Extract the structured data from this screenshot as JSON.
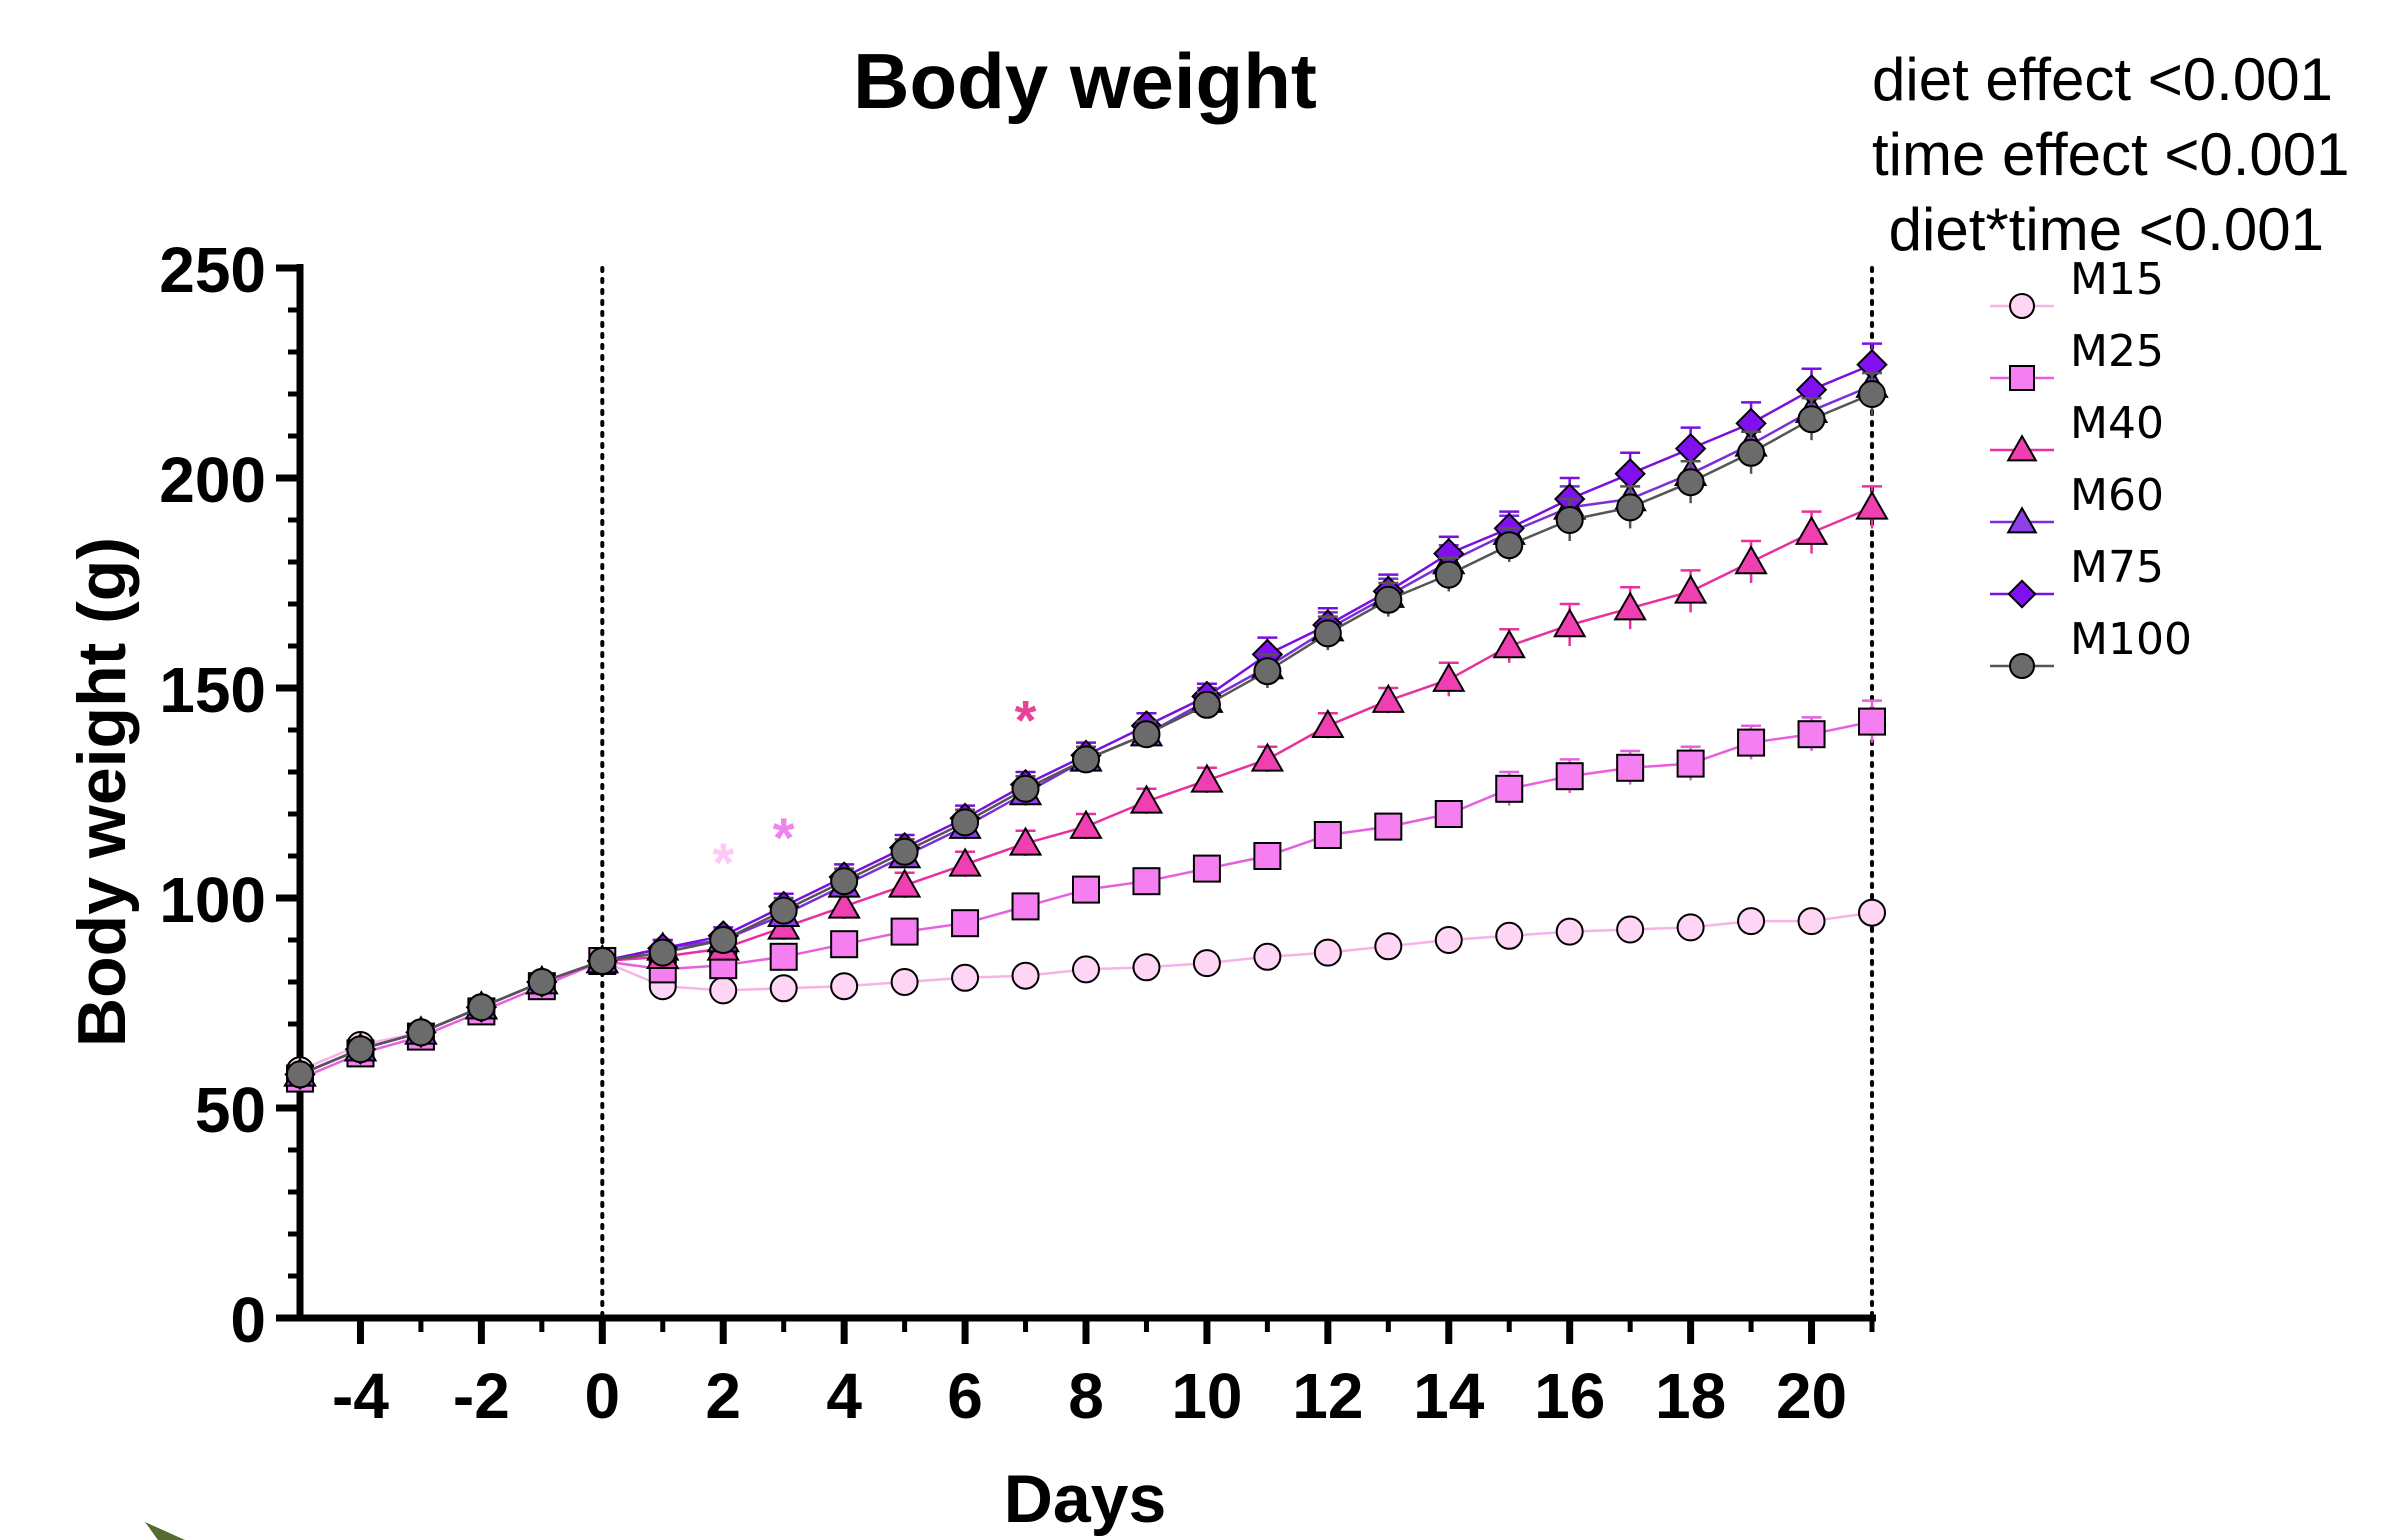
{
  "chart_data": {
    "type": "line",
    "title": "Body weight",
    "xlabel": "Days",
    "ylabel": "Body weight (g)",
    "xlim": [
      -5,
      21
    ],
    "ylim": [
      0,
      250
    ],
    "x_ticks": [
      -4,
      -2,
      0,
      2,
      4,
      6,
      8,
      10,
      12,
      14,
      16,
      18,
      20
    ],
    "y_ticks": [
      0,
      50,
      100,
      150,
      200,
      250
    ],
    "reference_lines_x": [
      0,
      21
    ],
    "grid": false,
    "legend_position": "top-right",
    "annotations": [
      {
        "text": "diet effect <0.001"
      },
      {
        "text": "time effect <0.001"
      },
      {
        "text": " diet*time <0.001"
      }
    ],
    "significance_marks": [
      {
        "text": "*",
        "x": 2,
        "y": 109,
        "color": "#ffc8f4"
      },
      {
        "text": "*",
        "x": 3,
        "y": 115,
        "color": "#ee82ee"
      },
      {
        "text": "*",
        "x": 7,
        "y": 143,
        "color": "#e8439a"
      }
    ],
    "x": [
      -5,
      -4,
      -3,
      -2,
      -1,
      0,
      1,
      2,
      3,
      4,
      5,
      6,
      7,
      8,
      9,
      10,
      11,
      12,
      13,
      14,
      15,
      16,
      17,
      18,
      19,
      20,
      21
    ],
    "series": [
      {
        "name": "M15",
        "marker": "circle",
        "color": "#ffd5f5",
        "line_color": "#f7b3e8",
        "values": [
          59,
          65,
          68,
          74,
          80,
          85,
          79,
          78,
          78.5,
          79,
          80,
          81,
          81.5,
          83,
          83.5,
          84.5,
          86,
          87,
          88.5,
          90,
          91,
          92,
          92.5,
          93,
          94.5,
          94.5,
          96.5
        ],
        "errors": [
          2,
          2,
          2,
          2,
          2,
          2,
          2,
          2,
          2,
          2,
          2,
          2,
          2,
          2,
          2,
          2,
          2,
          2,
          2,
          2,
          2,
          2,
          2,
          2,
          2,
          2,
          2
        ]
      },
      {
        "name": "M25",
        "marker": "square",
        "color": "#f57ff0",
        "line_color": "#e85ee0",
        "values": [
          57,
          63,
          67,
          73,
          79,
          85,
          83,
          84,
          86,
          89,
          92,
          94,
          98,
          102,
          104,
          107,
          110,
          115,
          117,
          120,
          126,
          129,
          131,
          132,
          137,
          139,
          142
        ],
        "errors": [
          2,
          2,
          2,
          2,
          2,
          2,
          2,
          2,
          3,
          3,
          3,
          3,
          3,
          3,
          3,
          3,
          3,
          3,
          3,
          3,
          4,
          4,
          4,
          4,
          4,
          4,
          5
        ]
      },
      {
        "name": "M40",
        "marker": "triangle",
        "color": "#f03fb0",
        "line_color": "#e8309e",
        "values": [
          58,
          64,
          68,
          74,
          80,
          85,
          86,
          88,
          93,
          98,
          103,
          108,
          113,
          117,
          123,
          128,
          133,
          141,
          147,
          152,
          160,
          165,
          169,
          173,
          180,
          187,
          193
        ],
        "errors": [
          2,
          2,
          2,
          2,
          2,
          2,
          2,
          2,
          3,
          3,
          3,
          3,
          3,
          3,
          3,
          3,
          3,
          3,
          3,
          4,
          4,
          5,
          5,
          5,
          5,
          5,
          5
        ]
      },
      {
        "name": "M60",
        "marker": "triangle",
        "color": "#9040e8",
        "line_color": "#7a30d8",
        "values": [
          58,
          64,
          68,
          74,
          80,
          85,
          88,
          90,
          96,
          103,
          110,
          117,
          125,
          133,
          139,
          147,
          155,
          164,
          172,
          180,
          187,
          193,
          195,
          201,
          208,
          216,
          222
        ],
        "errors": [
          2,
          2,
          2,
          2,
          2,
          2,
          2,
          2,
          3,
          3,
          3,
          3,
          3,
          3,
          3,
          3,
          4,
          4,
          4,
          4,
          4,
          5,
          5,
          5,
          5,
          5,
          5
        ]
      },
      {
        "name": "M75",
        "marker": "diamond",
        "color": "#8010f0",
        "line_color": "#7a10e0",
        "values": [
          58,
          64,
          68,
          74,
          80,
          85,
          88,
          91,
          98,
          105,
          112,
          119,
          127,
          134,
          141,
          148,
          158,
          165,
          173,
          182,
          188,
          195,
          201,
          207,
          213,
          221,
          227
        ],
        "errors": [
          2,
          2,
          2,
          2,
          2,
          2,
          2,
          2,
          3,
          3,
          3,
          3,
          3,
          3,
          3,
          3,
          4,
          4,
          4,
          4,
          4,
          5,
          5,
          5,
          5,
          5,
          5
        ]
      },
      {
        "name": "M100",
        "marker": "circle",
        "color": "#6b6b6b",
        "line_color": "#555555",
        "values": [
          58,
          64,
          68,
          74,
          80,
          85,
          87,
          90,
          97,
          104,
          111,
          118,
          126,
          133,
          139,
          146,
          154,
          163,
          171,
          177,
          184,
          190,
          193,
          199,
          206,
          214,
          220
        ],
        "errors": [
          2,
          2,
          2,
          2,
          2,
          2,
          2,
          2,
          3,
          3,
          3,
          3,
          3,
          3,
          3,
          3,
          4,
          4,
          4,
          4,
          4,
          5,
          5,
          5,
          5,
          5,
          5
        ]
      }
    ]
  }
}
